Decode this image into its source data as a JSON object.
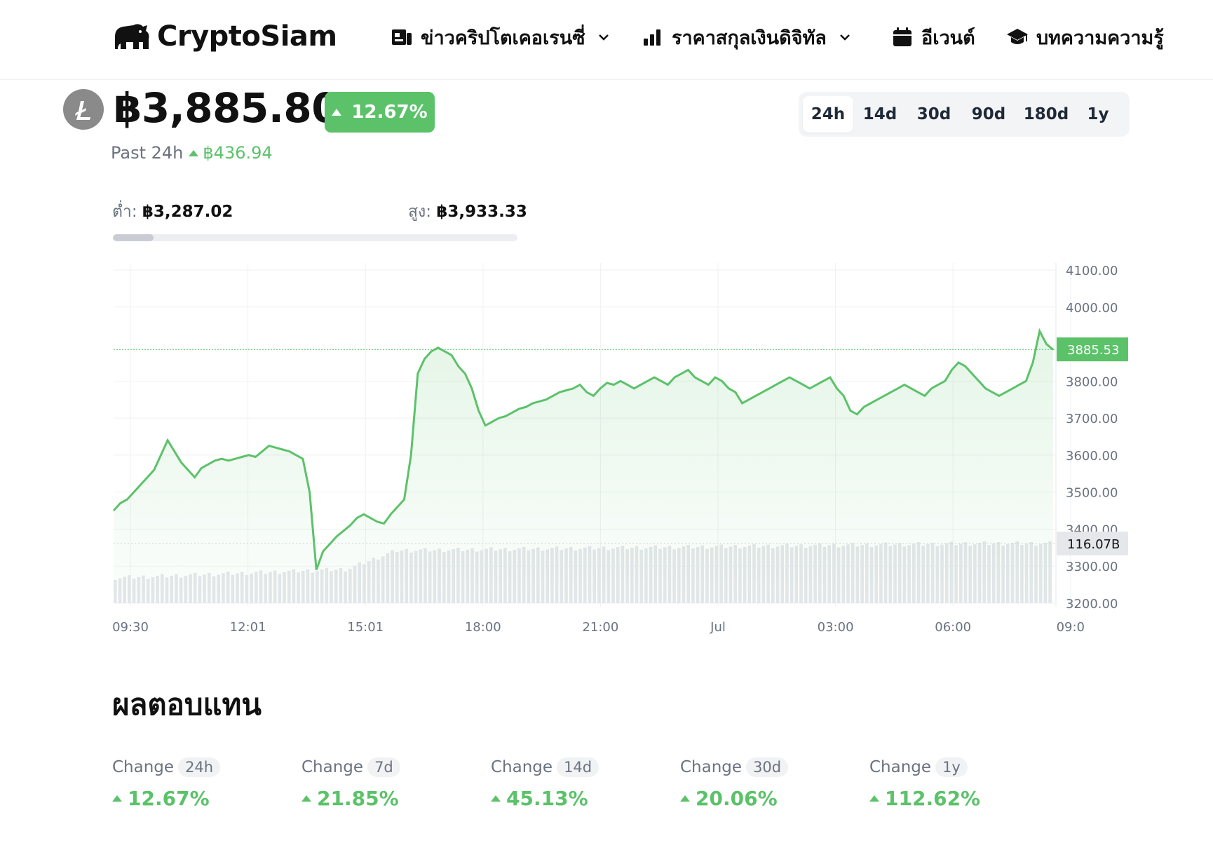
{
  "header": {
    "logo_text": "CryptoSiam",
    "nav": [
      {
        "label": "ข่าวคริปโตเคอเรนซี่",
        "icon": "news-icon",
        "has_dropdown": true
      },
      {
        "label": "ราคาสกุลเงินดิจิทัล",
        "icon": "bar-chart-icon",
        "has_dropdown": true
      },
      {
        "label": "อีเวนต์",
        "icon": "calendar-icon",
        "has_dropdown": false
      },
      {
        "label": "บทความความรู้",
        "icon": "graduation-cap-icon",
        "has_dropdown": false
      }
    ]
  },
  "coin": {
    "icon": "litecoin-icon",
    "price": "฿3,885.80",
    "change_pct": "12.67%",
    "past_label": "Past 24h",
    "past_change": "฿436.94",
    "low_label": "ต่ำ:",
    "low_value": "฿3,287.02",
    "high_label": "สูง:",
    "high_value": "฿3,933.33",
    "range_position": 0.1
  },
  "ranges": [
    "24h",
    "14d",
    "30d",
    "90d",
    "180d",
    "1y"
  ],
  "active_range": "24h",
  "colors": {
    "accent": "#5cc26a",
    "volume": "#e5e7eb",
    "grid": "#f0f1f3"
  },
  "chart_data": {
    "type": "line",
    "x_ticks": [
      "09:30",
      "12:01",
      "15:01",
      "18:00",
      "21:00",
      "Jul",
      "03:00",
      "06:00",
      "09:0"
    ],
    "y_ticks": [
      "4100.00",
      "4000.00",
      "3800.00",
      "3700.00",
      "3600.00",
      "3500.00",
      "3400.00",
      "3300.00",
      "3200.00"
    ],
    "ylim": [
      3200,
      4100
    ],
    "current_price_label": "3885.53",
    "current_price": 3885.53,
    "volume_label": "116.07B",
    "price_series": [
      3450,
      3470,
      3480,
      3500,
      3520,
      3540,
      3560,
      3600,
      3640,
      3610,
      3580,
      3560,
      3540,
      3565,
      3575,
      3585,
      3590,
      3585,
      3590,
      3595,
      3600,
      3595,
      3610,
      3625,
      3620,
      3615,
      3610,
      3600,
      3590,
      3500,
      3290,
      3340,
      3360,
      3380,
      3395,
      3410,
      3430,
      3440,
      3430,
      3420,
      3415,
      3440,
      3460,
      3480,
      3600,
      3820,
      3860,
      3880,
      3890,
      3880,
      3870,
      3840,
      3820,
      3780,
      3720,
      3680,
      3690,
      3700,
      3705,
      3715,
      3725,
      3730,
      3740,
      3745,
      3750,
      3760,
      3770,
      3775,
      3780,
      3790,
      3770,
      3760,
      3780,
      3795,
      3790,
      3800,
      3790,
      3780,
      3790,
      3800,
      3810,
      3800,
      3790,
      3810,
      3820,
      3830,
      3810,
      3800,
      3790,
      3810,
      3800,
      3780,
      3770,
      3740,
      3750,
      3760,
      3770,
      3780,
      3790,
      3800,
      3810,
      3800,
      3790,
      3780,
      3790,
      3800,
      3810,
      3780,
      3760,
      3720,
      3710,
      3730,
      3740,
      3750,
      3760,
      3770,
      3780,
      3790,
      3780,
      3770,
      3760,
      3780,
      3790,
      3800,
      3830,
      3850,
      3840,
      3820,
      3800,
      3780,
      3770,
      3760,
      3770,
      3780,
      3790,
      3800,
      3850,
      3935,
      3900,
      3885
    ]
  },
  "returns": {
    "title": "ผลตอบแทน",
    "change_label": "Change",
    "items": [
      {
        "period": "24h",
        "value": "12.67%"
      },
      {
        "period": "7d",
        "value": "21.85%"
      },
      {
        "period": "14d",
        "value": "45.13%"
      },
      {
        "period": "30d",
        "value": "20.06%"
      },
      {
        "period": "1y",
        "value": "112.62%"
      }
    ]
  }
}
